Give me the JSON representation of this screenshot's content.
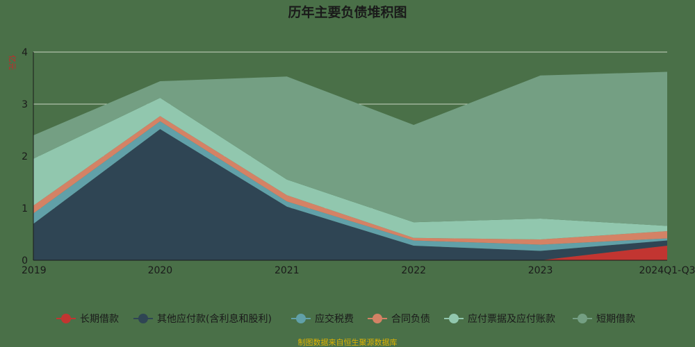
{
  "chart_data": {
    "type": "area",
    "stacked": true,
    "title": "历年主要负债堆积图",
    "ylabel": "亿元",
    "xlabel": "",
    "categories": [
      "2019",
      "2020",
      "2021",
      "2022",
      "2023",
      "2024Q1-Q3"
    ],
    "ylim": [
      0,
      4
    ],
    "yticks": [
      0,
      1,
      2,
      3,
      4
    ],
    "grid": true,
    "legend_position": "bottom",
    "series": [
      {
        "name": "长期借款",
        "color": "#c23531",
        "values": [
          0,
          0,
          0,
          0,
          0,
          0.28
        ]
      },
      {
        "name": "其他应付款(含利息和股利)",
        "color": "#2f4554",
        "values": [
          0.7,
          2.52,
          1.03,
          0.28,
          0.18,
          0.1
        ]
      },
      {
        "name": "应交税费",
        "color": "#61a0a8",
        "values": [
          0.2,
          0.15,
          0.1,
          0.1,
          0.12,
          0.04
        ]
      },
      {
        "name": "合同负债",
        "color": "#d48265",
        "values": [
          0.15,
          0.1,
          0.12,
          0.05,
          0.1,
          0.14
        ]
      },
      {
        "name": "应付票据及应付账款",
        "color": "#91c7ae",
        "values": [
          0.9,
          0.35,
          0.3,
          0.3,
          0.4,
          0.1
        ]
      },
      {
        "name": "短期借款",
        "color": "#749f83",
        "values": [
          0.45,
          0.32,
          1.98,
          1.87,
          2.75,
          2.96
        ]
      }
    ],
    "source_note": "制图数据来自恒生聚源数据库"
  }
}
